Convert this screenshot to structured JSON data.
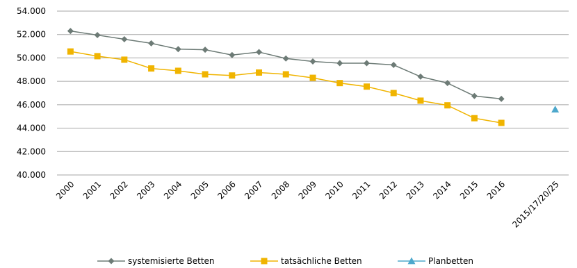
{
  "chart_data": {
    "type": "line",
    "categories": [
      "2000",
      "2001",
      "2002",
      "2003",
      "2004",
      "2005",
      "2006",
      "2007",
      "2008",
      "2009",
      "2010",
      "2011",
      "2012",
      "2013",
      "2014",
      "2015",
      "2016",
      "",
      "2015/17/20/25"
    ],
    "ylim": [
      40000,
      54000
    ],
    "y_ticks": [
      "40.000",
      "42.000",
      "44.000",
      "46.000",
      "48.000",
      "50.000",
      "52.000",
      "54.000"
    ],
    "y_tick_values": [
      40000,
      42000,
      44000,
      46000,
      48000,
      50000,
      52000,
      54000
    ],
    "grid": true,
    "legend_position": "bottom",
    "series": [
      {
        "name": "systemisierte Betten",
        "color": "#6d7b76",
        "marker": "diamond",
        "values": [
          52300,
          51950,
          51600,
          51250,
          50750,
          50700,
          50250,
          50500,
          49950,
          49700,
          49550,
          49550,
          49400,
          48400,
          47850,
          46750,
          46500,
          null,
          null
        ]
      },
      {
        "name": "tatsächliche Betten",
        "color": "#f0b400",
        "marker": "square",
        "values": [
          50550,
          50150,
          49850,
          49100,
          48900,
          48600,
          48500,
          48750,
          48600,
          48300,
          47850,
          47550,
          47000,
          46350,
          45950,
          44850,
          44450,
          null,
          null
        ]
      },
      {
        "name": "Planbetten",
        "color": "#4da8cc",
        "marker": "triangle",
        "values": [
          null,
          null,
          null,
          null,
          null,
          null,
          null,
          null,
          null,
          null,
          null,
          null,
          null,
          null,
          null,
          null,
          null,
          null,
          45600
        ]
      }
    ]
  }
}
